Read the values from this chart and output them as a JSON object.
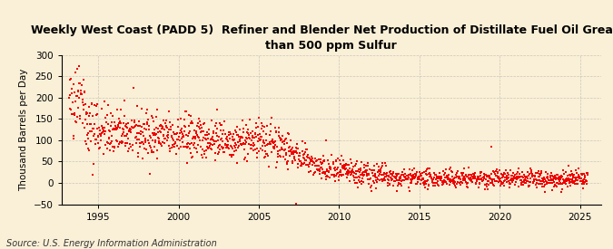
{
  "title": "Weekly West Coast (PADD 5)  Refiner and Blender Net Production of Distillate Fuel Oil Greater\nthan 500 ppm Sulfur",
  "ylabel": "Thousand Barrels per Day",
  "source": "Source: U.S. Energy Information Administration",
  "marker_color": "#EE0000",
  "background_color": "#FAF0D7",
  "grid_color": "#AAAAAA",
  "ylim": [
    -50,
    300
  ],
  "yticks": [
    -50,
    0,
    50,
    100,
    150,
    200,
    250,
    300
  ],
  "xlim_start": 1992.7,
  "xlim_end": 2026.3,
  "xticks": [
    1995,
    2000,
    2005,
    2010,
    2015,
    2020,
    2025
  ],
  "seed": 42,
  "title_fontsize": 9.0,
  "axis_fontsize": 7.5,
  "source_fontsize": 7.0
}
